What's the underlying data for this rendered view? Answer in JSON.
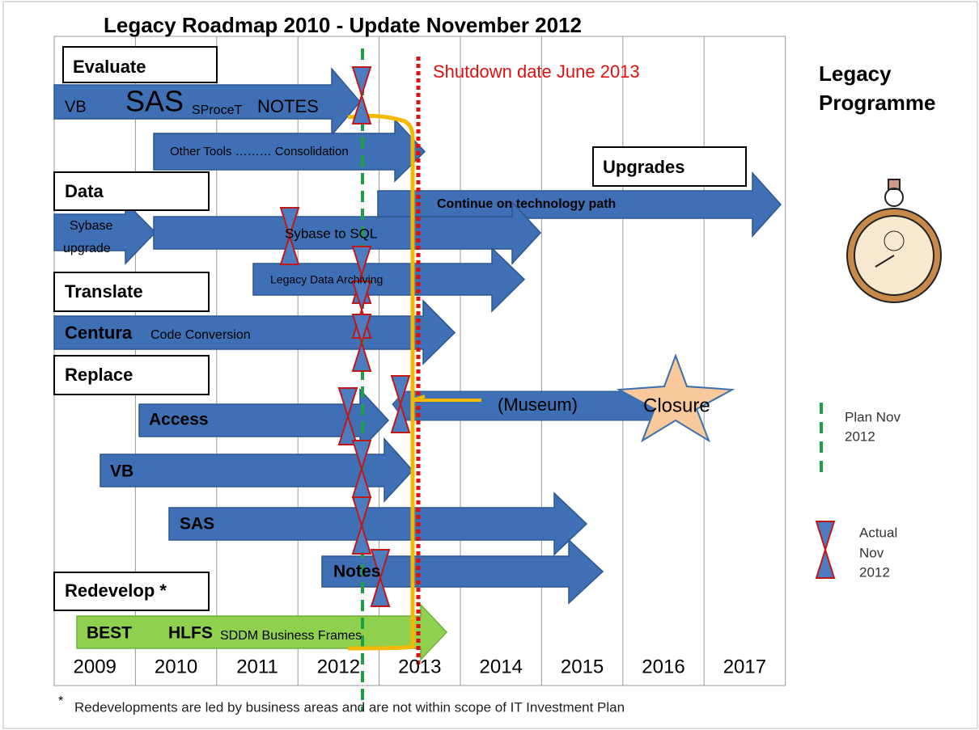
{
  "title": "Legacy Roadmap 2010 - Update November 2012",
  "shutdown": "Shutdown date June 2013",
  "programme": [
    "Legacy",
    "Programme"
  ],
  "years": [
    "2009",
    "2010",
    "2011",
    "2012",
    "2013",
    "2014",
    "2015",
    "2016",
    "2017"
  ],
  "sections": [
    "Evaluate",
    "Data",
    "Translate",
    "Replace",
    "Redevelop *",
    "Upgrades"
  ],
  "arrows": [
    [
      "VB",
      "SAS",
      "SProceT",
      "NOTES"
    ],
    [
      "Other Tools ……… Consolidation"
    ],
    [
      "Continue on technology path"
    ],
    [
      "Sybase",
      "upgrade"
    ],
    [
      "Sybase to SQL"
    ],
    [
      "Legacy Data Archiving"
    ],
    [
      "Centura",
      "Code Conversion"
    ],
    [
      "Access"
    ],
    [
      "(Museum)",
      "Closure"
    ],
    [
      "VB"
    ],
    [
      "SAS"
    ],
    [
      "Notes"
    ],
    [
      "BEST",
      "HLFS",
      "SDDM Business Frames"
    ]
  ],
  "legend": {
    "plan": [
      "Plan Nov",
      "2012"
    ],
    "actual": [
      "Actual",
      "Nov",
      "2012"
    ]
  },
  "footnote": {
    "marker": "*",
    "text": "Redevelopments are led by business areas and are not within scope of IT Investment Plan"
  }
}
